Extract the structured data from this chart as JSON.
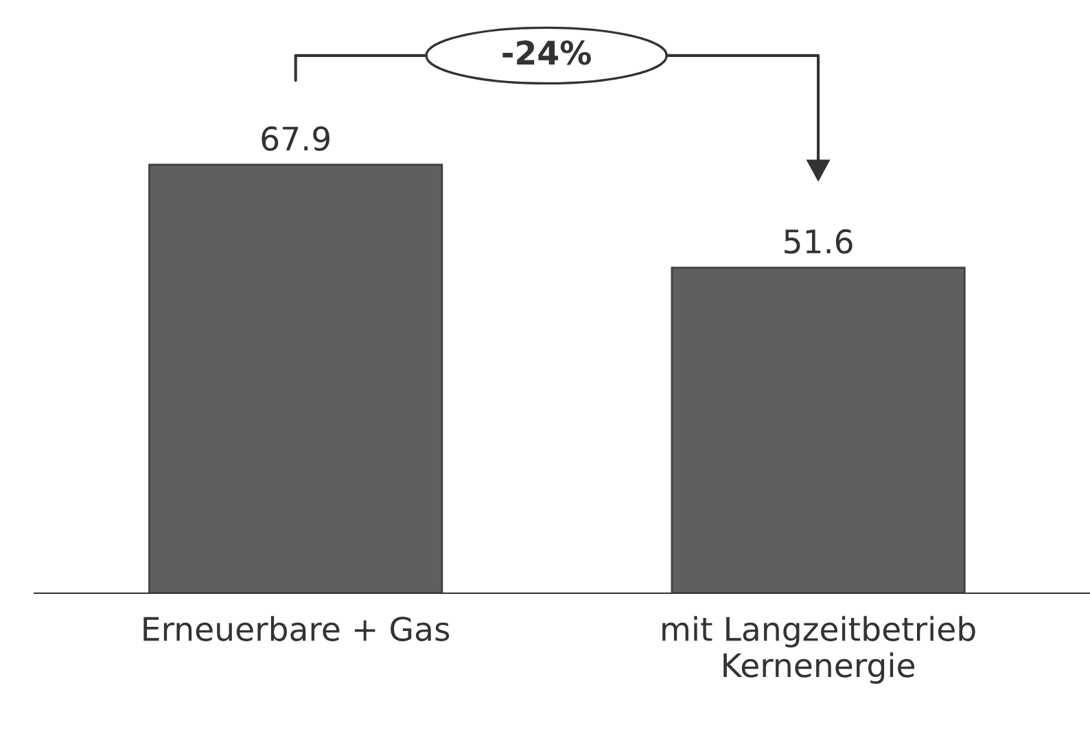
{
  "chart_data": {
    "type": "bar",
    "categories": [
      "Erneuerbare + Gas",
      "mit Langzeitbetrieb\nKernenergie"
    ],
    "values": [
      67.9,
      51.6
    ],
    "color": "#5f5f5f",
    "data_labels": true,
    "annotations": [
      "-24%"
    ]
  }
}
